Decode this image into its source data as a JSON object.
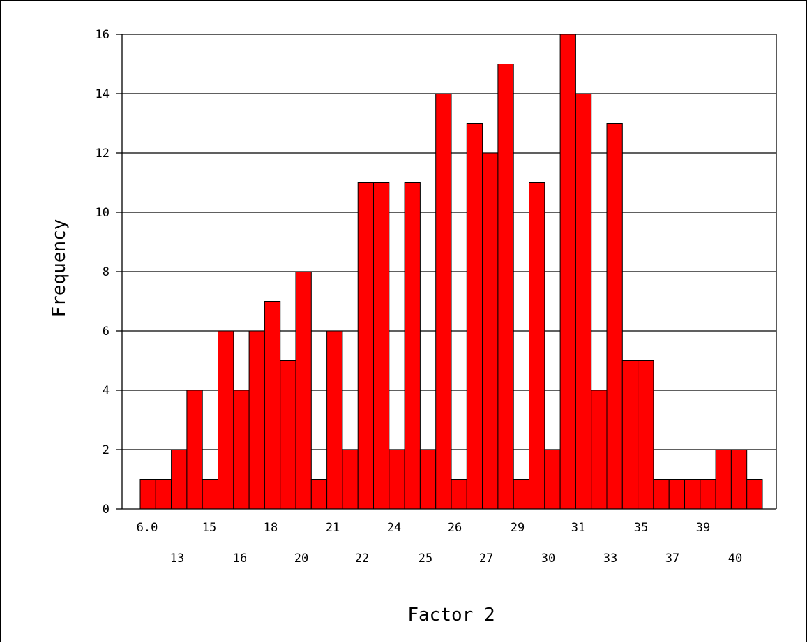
{
  "chart_data": {
    "type": "bar",
    "title": "",
    "xlabel": "Factor 2",
    "ylabel": "Frequency",
    "ylim": [
      0,
      16
    ],
    "yticks": [
      "0",
      "2",
      "4",
      "6",
      "8",
      "10",
      "12",
      "14",
      "16"
    ],
    "grid": true,
    "bar_color": "#ff0000",
    "x_tick_labels_row1": [
      "6.0",
      "15",
      "18",
      "21",
      "24",
      "26",
      "29",
      "31",
      "35",
      "39"
    ],
    "x_tick_labels_row2": [
      "13",
      "16",
      "20",
      "22",
      "25",
      "27",
      "30",
      "33",
      "37",
      "40"
    ],
    "values": [
      1,
      1,
      2,
      4,
      1,
      6,
      4,
      6,
      7,
      5,
      8,
      1,
      6,
      2,
      11,
      11,
      2,
      11,
      2,
      14,
      1,
      13,
      12,
      15,
      1,
      11,
      2,
      16,
      14,
      4,
      13,
      5,
      5,
      1,
      1,
      1,
      1,
      2,
      2,
      1
    ]
  }
}
